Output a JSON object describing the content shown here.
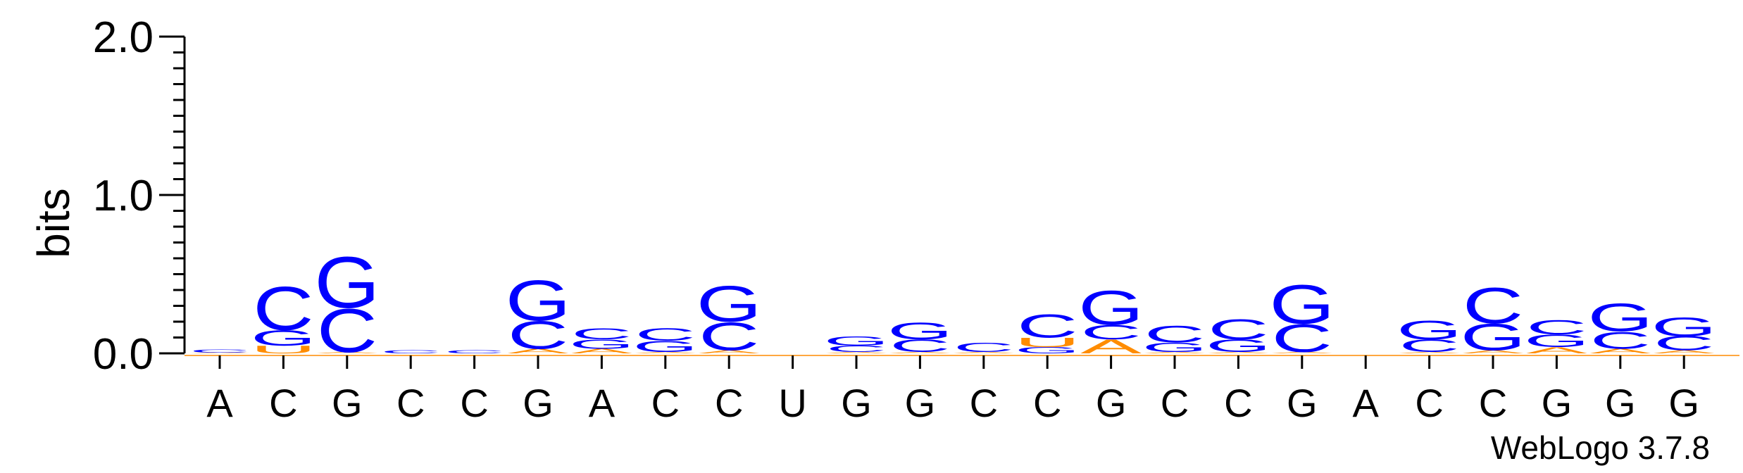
{
  "chart_data": {
    "type": "sequence-logo",
    "ylabel": "bits",
    "ylim": [
      0,
      2.0
    ],
    "yticks": [
      "0.0",
      "1.0",
      "2.0"
    ],
    "xtick_labels": [
      "A",
      "C",
      "G",
      "C",
      "C",
      "G",
      "A",
      "C",
      "C",
      "U",
      "G",
      "G",
      "C",
      "C",
      "G",
      "C",
      "C",
      "G",
      "A",
      "C",
      "C",
      "G",
      "G",
      "G"
    ],
    "footer": "WebLogo 3.7.8",
    "colors": {
      "G": "#0000ff",
      "C": "#0000ff",
      "A": "#ff8c00",
      "U": "#ff8c00"
    },
    "stacks": [
      {
        "position": 1,
        "letters": [
          {
            "l": "A",
            "h": 0.005
          },
          {
            "l": "C",
            "h": 0.02
          }
        ]
      },
      {
        "position": 2,
        "letters": [
          {
            "l": "U",
            "h": 0.05
          },
          {
            "l": "G",
            "h": 0.1
          },
          {
            "l": "C",
            "h": 0.28
          }
        ]
      },
      {
        "position": 3,
        "letters": [
          {
            "l": "A",
            "h": 0.01
          },
          {
            "l": "C",
            "h": 0.28
          },
          {
            "l": "G",
            "h": 0.33
          }
        ]
      },
      {
        "position": 4,
        "letters": [
          {
            "l": "C",
            "h": 0.02
          }
        ]
      },
      {
        "position": 5,
        "letters": [
          {
            "l": "C",
            "h": 0.02
          }
        ]
      },
      {
        "position": 6,
        "letters": [
          {
            "l": "A",
            "h": 0.03
          },
          {
            "l": "C",
            "h": 0.18
          },
          {
            "l": "G",
            "h": 0.26
          }
        ]
      },
      {
        "position": 7,
        "letters": [
          {
            "l": "A",
            "h": 0.03
          },
          {
            "l": "G",
            "h": 0.06
          },
          {
            "l": "C",
            "h": 0.07
          }
        ]
      },
      {
        "position": 8,
        "letters": [
          {
            "l": "A",
            "h": 0.01
          },
          {
            "l": "G",
            "h": 0.07
          },
          {
            "l": "C",
            "h": 0.08
          }
        ]
      },
      {
        "position": 9,
        "letters": [
          {
            "l": "A",
            "h": 0.02
          },
          {
            "l": "C",
            "h": 0.18
          },
          {
            "l": "G",
            "h": 0.23
          }
        ]
      },
      {
        "position": 10,
        "letters": []
      },
      {
        "position": 11,
        "letters": [
          {
            "l": "A",
            "h": 0.01
          },
          {
            "l": "C",
            "h": 0.04
          },
          {
            "l": "G",
            "h": 0.06
          }
        ]
      },
      {
        "position": 12,
        "letters": [
          {
            "l": "A",
            "h": 0.01
          },
          {
            "l": "C",
            "h": 0.08
          },
          {
            "l": "G",
            "h": 0.11
          }
        ]
      },
      {
        "position": 13,
        "letters": [
          {
            "l": "A",
            "h": 0.01
          },
          {
            "l": "C",
            "h": 0.06
          }
        ]
      },
      {
        "position": 14,
        "letters": [
          {
            "l": "G",
            "h": 0.04
          },
          {
            "l": "U",
            "h": 0.06
          },
          {
            "l": "C",
            "h": 0.15
          }
        ]
      },
      {
        "position": 15,
        "letters": [
          {
            "l": "A",
            "h": 0.09
          },
          {
            "l": "C",
            "h": 0.09
          },
          {
            "l": "G",
            "h": 0.22
          }
        ]
      },
      {
        "position": 16,
        "letters": [
          {
            "l": "A",
            "h": 0.01
          },
          {
            "l": "G",
            "h": 0.06
          },
          {
            "l": "C",
            "h": 0.11
          }
        ]
      },
      {
        "position": 17,
        "letters": [
          {
            "l": "A",
            "h": 0.01
          },
          {
            "l": "G",
            "h": 0.08
          },
          {
            "l": "C",
            "h": 0.13
          }
        ]
      },
      {
        "position": 18,
        "letters": [
          {
            "l": "A",
            "h": 0.01
          },
          {
            "l": "C",
            "h": 0.18
          },
          {
            "l": "G",
            "h": 0.25
          }
        ]
      },
      {
        "position": 19,
        "letters": []
      },
      {
        "position": 20,
        "letters": [
          {
            "l": "A",
            "h": 0.01
          },
          {
            "l": "C",
            "h": 0.08
          },
          {
            "l": "G",
            "h": 0.12
          }
        ]
      },
      {
        "position": 21,
        "letters": [
          {
            "l": "A",
            "h": 0.02
          },
          {
            "l": "G",
            "h": 0.17
          },
          {
            "l": "C",
            "h": 0.23
          }
        ]
      },
      {
        "position": 22,
        "letters": [
          {
            "l": "A",
            "h": 0.04
          },
          {
            "l": "G",
            "h": 0.08
          },
          {
            "l": "C",
            "h": 0.09
          }
        ]
      },
      {
        "position": 23,
        "letters": [
          {
            "l": "A",
            "h": 0.03
          },
          {
            "l": "C",
            "h": 0.11
          },
          {
            "l": "G",
            "h": 0.18
          }
        ]
      },
      {
        "position": 24,
        "letters": [
          {
            "l": "A",
            "h": 0.02
          },
          {
            "l": "C",
            "h": 0.09
          },
          {
            "l": "G",
            "h": 0.12
          }
        ]
      }
    ]
  }
}
